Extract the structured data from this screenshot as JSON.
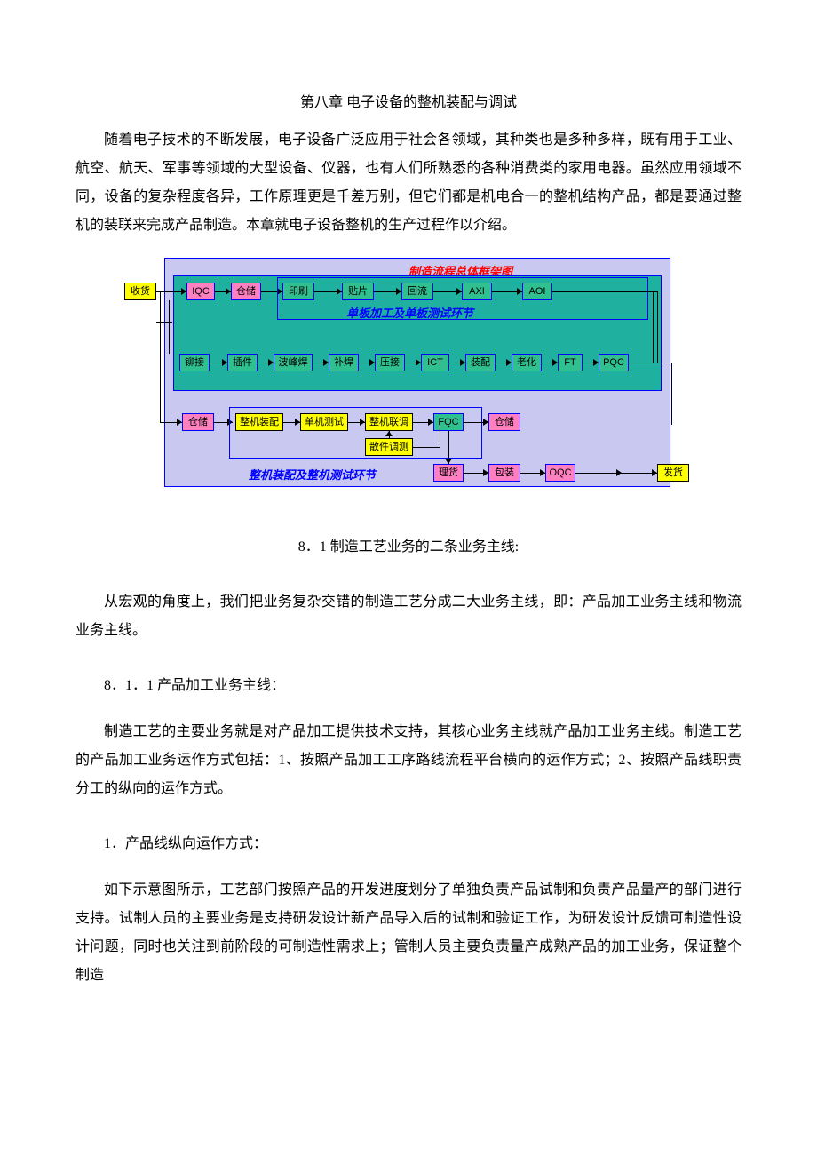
{
  "doc": {
    "chapter_title": "第八章 电子设备的整机装配与调试",
    "intro_para": "随着电子技术的不断发展，电子设备广泛应用于社会各领域，其种类也是多种多样，既有用于工业、航空、航天、军事等领域的大型设备、仪器，也有人们所熟悉的各种消费类的家用电器。虽然应用领域不同，设备的复杂程度各异，工作原理更是千差万别，但它们都是机电合一的整机结构产品，都是要通过整机的装联来完成产品制造。本章就电子设备整机的生产过程作以介绍。",
    "section_8_1_title": "8．1  制造工艺业务的二条业务主线:",
    "section_8_1_para": "从宏观的角度上，我们把业务复杂交错的制造工艺分成二大业务主线，即：产品加工业务主线和物流业务主线。",
    "sub_8_1_1_title": "8．1．1 产品加工业务主线：",
    "sub_8_1_1_para": "制造工艺的主要业务就是对产品加工提供技术支持，其核心业务主线就产品加工业务主线。制造工艺的产品加工业务运作方式包括：1、按照产品加工工序路线流程平台横向的运作方式；2、按照产品线职责分工的纵向的运作方式。",
    "item_1_title": "1．产品线纵向运作方式：",
    "item_1_para": "如下示意图所示，工艺部门按照产品的开发进度划分了单独负责产品试制和负责产品量产的部门进行支持。试制人员的主要业务是支持研发设计新产品导入后的试制和验证工作，为研发设计反馈可制造性设计问题，同时也关注到前阶段的可制造性需求上；管制人员主要负责量产成熟产品的加工业务，保证整个制造"
  },
  "flowchart": {
    "colors": {
      "outer_bg": "#c8c8f0",
      "outer_border": "#0000ff",
      "teal_bg": "#20b0a0",
      "teal_border": "#0000ff",
      "yellow": "#ffff00",
      "yellow_border": "#000000",
      "pink": "#ff80c0",
      "pink_border": "#0000ff",
      "green": "#30c090",
      "green_border": "#0000ff",
      "arrow_black": "#000000",
      "label_red": "#ff0000",
      "label_blue": "#0000ff"
    },
    "title_label": "制造流程总体框架图",
    "sub_label_1": "单板加工及单板测试环节",
    "sub_label_2": "整机装配及整机测试环节",
    "nodes": {
      "shouhuo": "收货",
      "iqc": "IQC",
      "cangchu1": "仓储",
      "yinshua": "印刷",
      "tiepian": "贴片",
      "huiliu": "回流",
      "axi": "AXI",
      "aoi": "AOI",
      "maojie": "铆接",
      "chajian": "插件",
      "bofenghan": "波峰焊",
      "buhan": "补焊",
      "yajie": "压接",
      "ict": "ICT",
      "zhuangpei": "装配",
      "laohua": "老化",
      "ft": "FT",
      "pqc": "PQC",
      "cangchu2": "仓储",
      "zhengji_zp": "整机装配",
      "danji_cs": "单机测试",
      "zhengji_lt": "整机联调",
      "fqc": "FQC",
      "cangchu3": "仓储",
      "sanjian_ts": "散件调测",
      "lihuo": "理货",
      "baozhuang": "包装",
      "oqc": "OQC",
      "fahuo": "发货"
    }
  }
}
